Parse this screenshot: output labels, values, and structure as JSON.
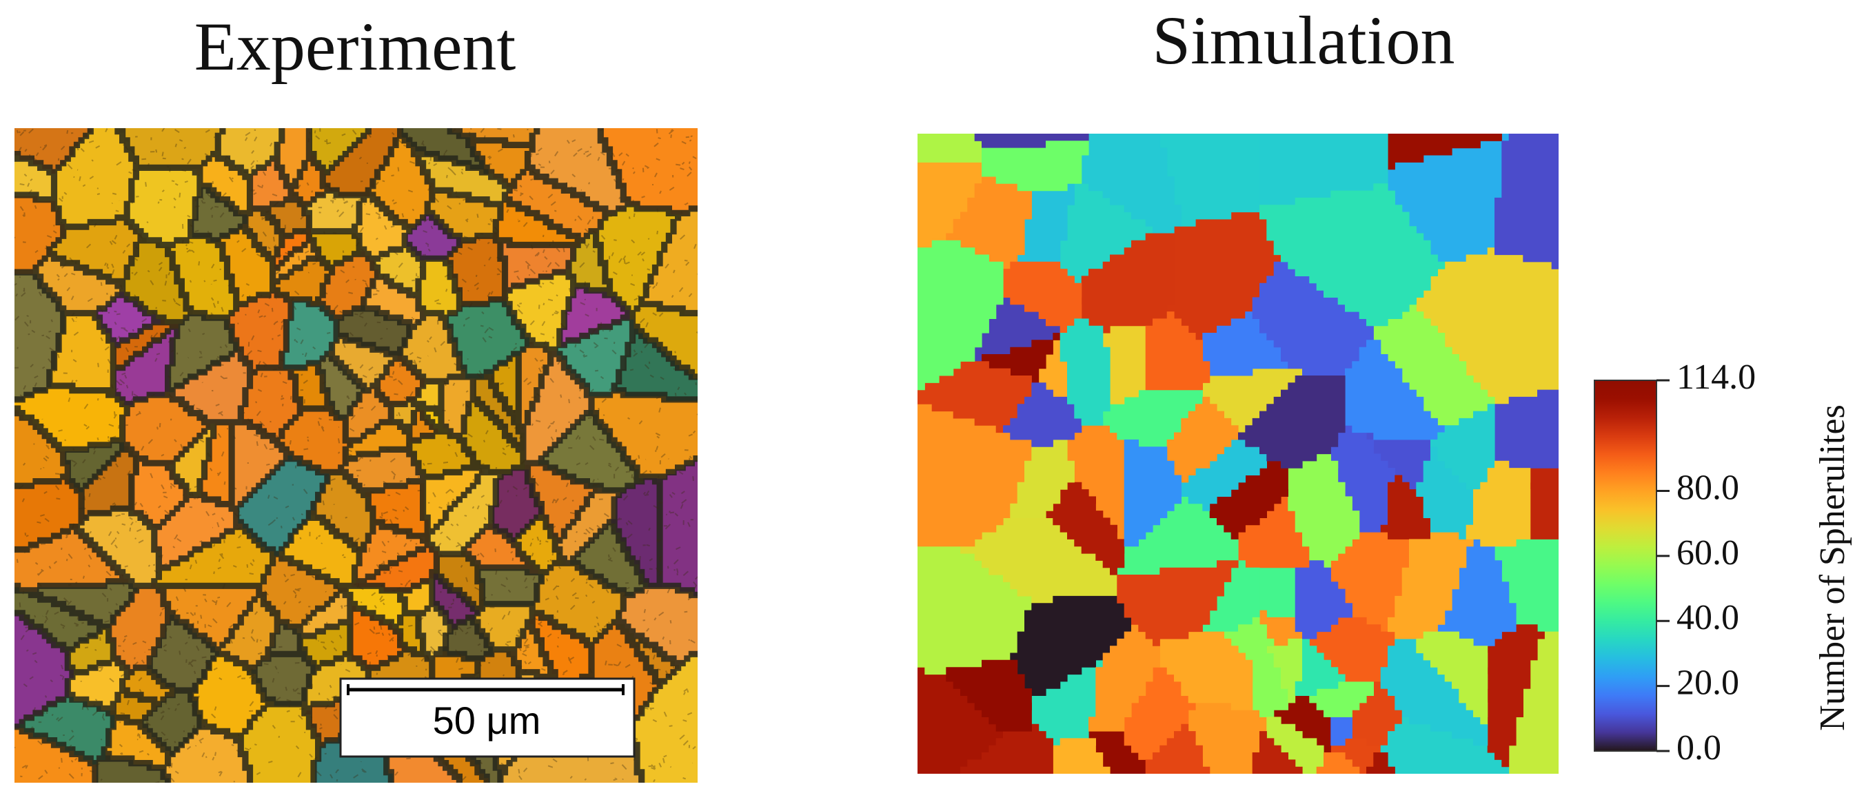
{
  "panels": [
    {
      "title": "Experiment",
      "scale_bar_label": "50 μm"
    },
    {
      "title": "Simulation",
      "colorbar": {
        "label": "Number of Spherulites",
        "lim": [
          0,
          114
        ],
        "ticks": [
          {
            "value": 0,
            "label": "0.0"
          },
          {
            "value": 20,
            "label": "20.0"
          },
          {
            "value": 40,
            "label": "40.0"
          },
          {
            "value": 60,
            "label": "60.0"
          },
          {
            "value": 80,
            "label": "80.0"
          },
          {
            "value": 114,
            "label": "114.0"
          }
        ]
      }
    }
  ]
}
